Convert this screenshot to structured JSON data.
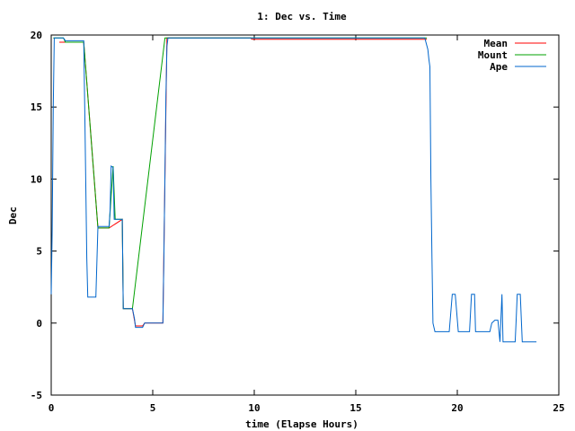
{
  "chart_data": {
    "type": "line",
    "title": "1: Dec vs. Time",
    "xlabel": "time (Elapse Hours)",
    "ylabel": "Dec",
    "xlim": [
      0,
      25
    ],
    "ylim": [
      -5,
      20
    ],
    "xticks": [
      0,
      5,
      10,
      15,
      20,
      25
    ],
    "yticks": [
      -5,
      0,
      5,
      10,
      15,
      20
    ],
    "grid": false,
    "legend_position": "top-right",
    "series": [
      {
        "name": "Mean",
        "color": "#ff0000",
        "points": [
          [
            0.4,
            19.5
          ],
          [
            0.7,
            19.5
          ],
          [
            1.6,
            19.5
          ],
          [
            2.3,
            6.6
          ],
          [
            2.85,
            6.6
          ],
          [
            3.5,
            7.2
          ],
          [
            3.55,
            1.0
          ],
          [
            4.0,
            1.0
          ],
          [
            4.15,
            -0.2
          ],
          [
            4.5,
            -0.2
          ],
          [
            4.6,
            0.0
          ],
          [
            5.5,
            0.0
          ],
          [
            5.7,
            19.8
          ],
          [
            9.8,
            19.8
          ],
          [
            9.9,
            19.7
          ],
          [
            18.5,
            19.7
          ]
        ]
      },
      {
        "name": "Mount",
        "color": "#00a000",
        "points": [
          [
            0.1,
            19.8
          ],
          [
            0.6,
            19.8
          ],
          [
            0.7,
            19.5
          ],
          [
            1.6,
            19.5
          ],
          [
            2.3,
            6.6
          ],
          [
            2.85,
            6.6
          ],
          [
            3.05,
            10.9
          ],
          [
            3.15,
            7.2
          ],
          [
            3.5,
            7.2
          ],
          [
            3.55,
            1.0
          ],
          [
            4.0,
            1.0
          ],
          [
            5.6,
            19.8
          ],
          [
            18.5,
            19.8
          ]
        ]
      },
      {
        "name": "Ape",
        "color": "#0066cc",
        "points": [
          [
            0.0,
            2.0
          ],
          [
            0.05,
            6.5
          ],
          [
            0.1,
            15.0
          ],
          [
            0.15,
            19.8
          ],
          [
            0.6,
            19.8
          ],
          [
            0.7,
            19.6
          ],
          [
            1.6,
            19.6
          ],
          [
            1.65,
            15.0
          ],
          [
            1.7,
            10.0
          ],
          [
            1.75,
            4.5
          ],
          [
            1.8,
            1.8
          ],
          [
            2.2,
            1.8
          ],
          [
            2.3,
            6.7
          ],
          [
            2.85,
            6.7
          ],
          [
            2.9,
            7.8
          ],
          [
            2.95,
            10.9
          ],
          [
            3.05,
            10.8
          ],
          [
            3.1,
            7.2
          ],
          [
            3.5,
            7.2
          ],
          [
            3.55,
            1.0
          ],
          [
            4.0,
            1.0
          ],
          [
            4.1,
            0.3
          ],
          [
            4.15,
            -0.3
          ],
          [
            4.5,
            -0.3
          ],
          [
            4.6,
            0.0
          ],
          [
            5.5,
            0.0
          ],
          [
            5.55,
            4.5
          ],
          [
            5.65,
            15.8
          ],
          [
            5.7,
            19.2
          ],
          [
            5.75,
            19.8
          ],
          [
            18.4,
            19.8
          ],
          [
            18.55,
            19.0
          ],
          [
            18.6,
            18.3
          ],
          [
            18.65,
            17.8
          ],
          [
            18.7,
            10.0
          ],
          [
            18.75,
            4.5
          ],
          [
            18.8,
            0.0
          ],
          [
            18.9,
            -0.6
          ],
          [
            19.6,
            -0.6
          ],
          [
            19.75,
            2.0
          ],
          [
            19.9,
            2.0
          ],
          [
            20.05,
            -0.6
          ],
          [
            20.6,
            -0.6
          ],
          [
            20.7,
            2.0
          ],
          [
            20.85,
            2.0
          ],
          [
            20.9,
            -0.6
          ],
          [
            21.6,
            -0.6
          ],
          [
            21.7,
            0.0
          ],
          [
            21.85,
            0.2
          ],
          [
            22.0,
            0.2
          ],
          [
            22.1,
            -1.3
          ],
          [
            22.2,
            2.0
          ],
          [
            22.25,
            -1.3
          ],
          [
            22.85,
            -1.3
          ],
          [
            22.9,
            0.2
          ],
          [
            22.95,
            2.0
          ],
          [
            23.1,
            2.0
          ],
          [
            23.2,
            -1.3
          ],
          [
            23.4,
            -1.3
          ],
          [
            23.9,
            -1.3
          ]
        ]
      }
    ]
  }
}
